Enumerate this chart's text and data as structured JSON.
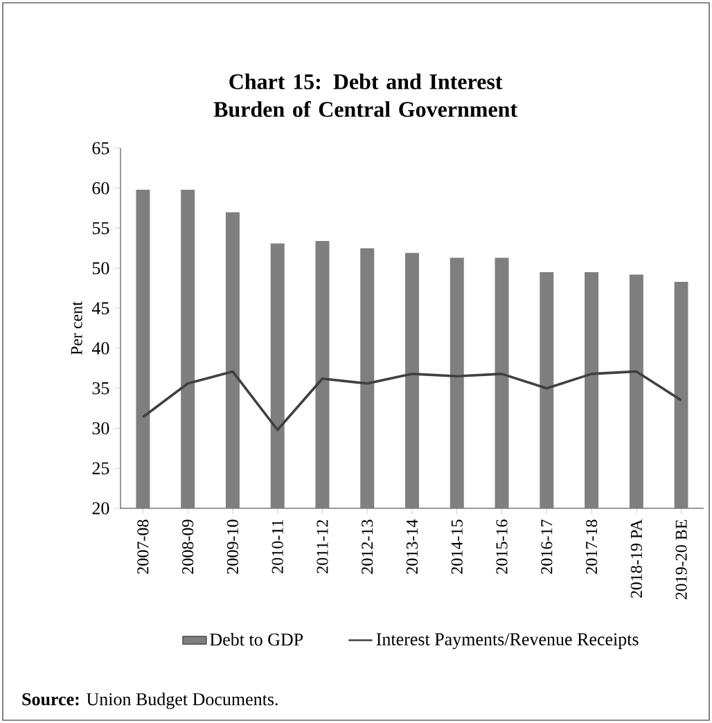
{
  "chart_data": {
    "type": "bar",
    "title": "Chart 15: Debt and Interest Burden of Central Government",
    "ylabel": "Per cent",
    "categories": [
      "2007-08",
      "2008-09",
      "2009-10",
      "2010-11",
      "2011-12",
      "2012-13",
      "2013-14",
      "2014-15",
      "2015-16",
      "2016-17",
      "2017-18",
      "2018-19 PA",
      "2019-20 BE"
    ],
    "series": [
      {
        "name": "Debt to GDP",
        "color": "#7f7f7f",
        "values": [
          59.8,
          59.8,
          57.0,
          53.1,
          53.4,
          52.5,
          51.9,
          51.3,
          51.3,
          49.5,
          49.5,
          49.2,
          48.3
        ]
      },
      {
        "name": "Interest Payments/Revenue Receipts",
        "type": "line",
        "color": "#404040",
        "values": [
          31.4,
          35.6,
          37.1,
          29.8,
          36.2,
          35.6,
          36.8,
          36.5,
          36.8,
          35.0,
          36.8,
          37.1,
          33.5
        ]
      }
    ],
    "ylim": [
      20,
      65
    ],
    "yticks": [
      20,
      25,
      30,
      35,
      40,
      45,
      50,
      55,
      60,
      65
    ],
    "legend": "bottom",
    "annotations": [
      "**Source:** Union Budget Documents."
    ]
  }
}
